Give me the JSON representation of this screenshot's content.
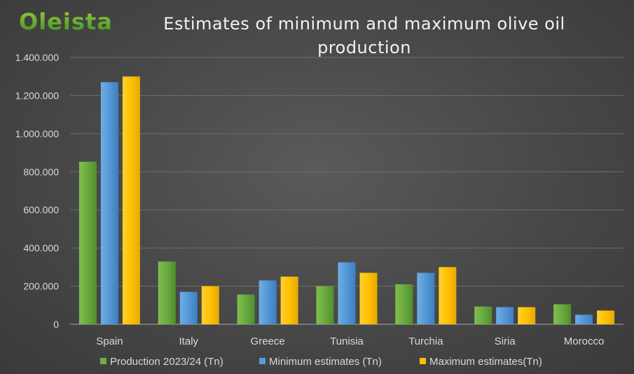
{
  "brand": {
    "logo_text": "Oleista"
  },
  "chart_data": {
    "type": "bar",
    "title": "Estimates of minimum and maximum olive oil production",
    "categories": [
      "Spain",
      "Italy",
      "Greece",
      "Tunisia",
      "Turchia",
      "Siria",
      "Morocco"
    ],
    "series": [
      {
        "name": "Production 2023/24 (Tn)",
        "color": "#70ad47",
        "values": [
          853000,
          329000,
          156000,
          200000,
          210000,
          93000,
          105000
        ]
      },
      {
        "name": "Minimum estimates (Tn)",
        "color": "#5b9bd5",
        "values": [
          1270000,
          170000,
          230000,
          325000,
          270000,
          90000,
          50000
        ]
      },
      {
        "name": "Maximum estimates(Tn)",
        "color": "#ffc000",
        "values": [
          1300000,
          200000,
          250000,
          270000,
          300000,
          90000,
          72000
        ]
      }
    ],
    "ylim": [
      0,
      1400000
    ],
    "yticks": [
      "0",
      "200.000",
      "400.000",
      "600.000",
      "800.000",
      "1.000.000",
      "1.200.000",
      "1.400.000"
    ],
    "grid": true,
    "legend_position": "bottom"
  }
}
